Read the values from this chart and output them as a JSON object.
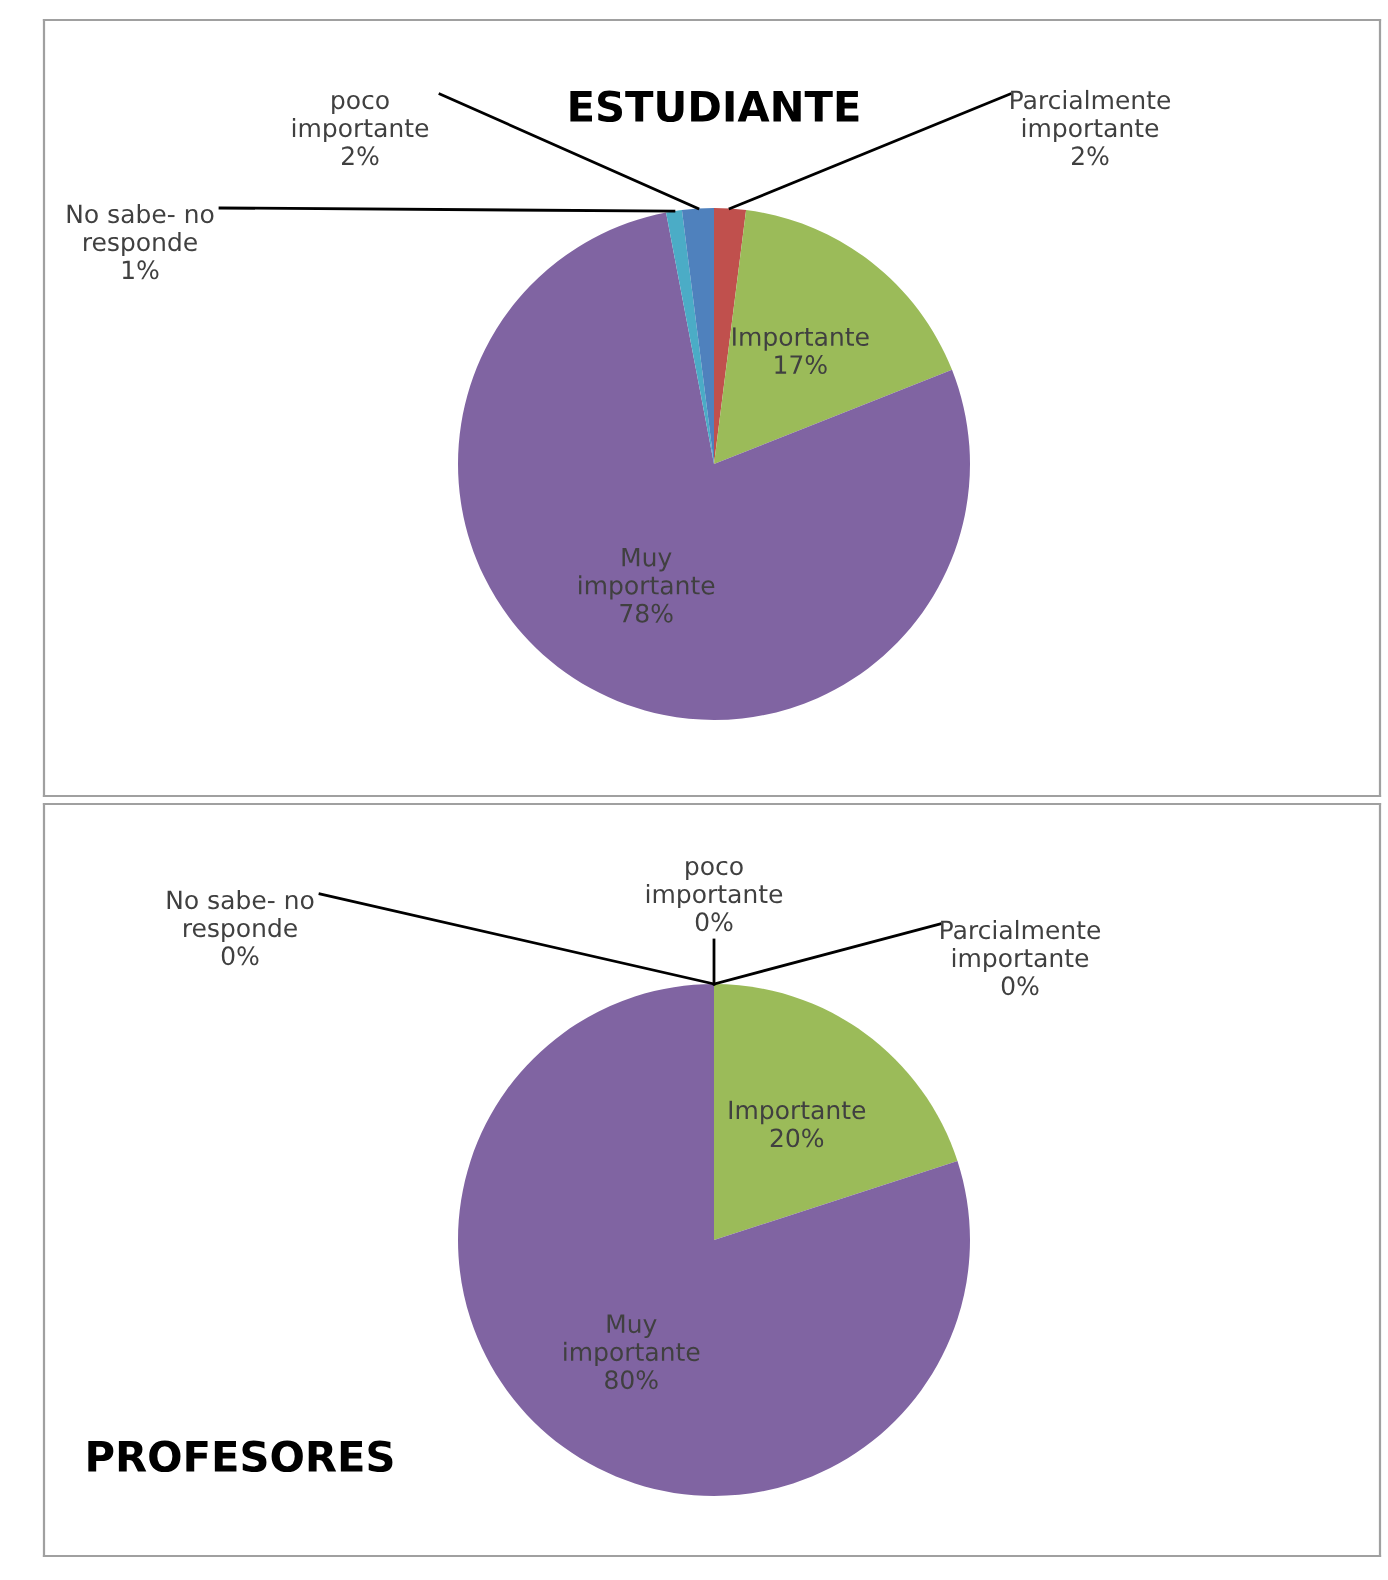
{
  "chart_data": [
    {
      "type": "pie",
      "title": "ESTUDIANTE",
      "categories": [
        "Parcialmente importante",
        "Importante",
        "Muy importante",
        "No sabe- no responde",
        "poco importante"
      ],
      "values": [
        2,
        17,
        78,
        1,
        2
      ],
      "value_labels": [
        "2%",
        "17%",
        "78%",
        "1%",
        "2%"
      ],
      "colors": [
        "#c0504d",
        "#9bbb59",
        "#8064a2",
        "#4bacc6",
        "#4f81bd"
      ]
    },
    {
      "type": "pie",
      "title": "PROFESORES",
      "categories": [
        "Parcialmente importante",
        "Importante",
        "Muy importante",
        "No sabe- no responde",
        "poco importante"
      ],
      "values": [
        0,
        20,
        80,
        0,
        0
      ],
      "value_labels": [
        "0%",
        "20%",
        "80%",
        "0%",
        "0%"
      ],
      "colors": [
        "#c0504d",
        "#9bbb59",
        "#8064a2",
        "#4bacc6",
        "#4f81bd"
      ]
    }
  ]
}
